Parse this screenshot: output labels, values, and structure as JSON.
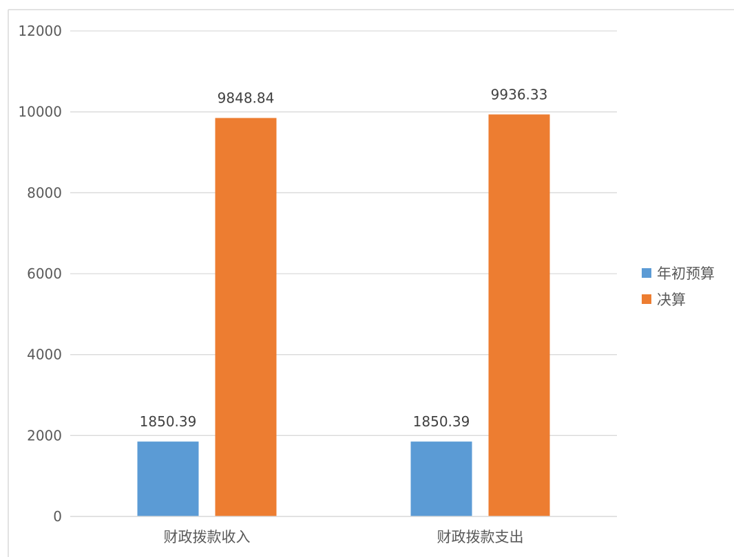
{
  "chart_data": {
    "type": "bar",
    "title": "",
    "xlabel": "",
    "ylabel": "",
    "categories": [
      "财政拨款收入",
      "财政拨款支出"
    ],
    "series": [
      {
        "name": "年初预算",
        "values": [
          1850.39,
          1850.39
        ],
        "data_labels": [
          "1850.39",
          "1850.39"
        ],
        "color": "#5b9bd5"
      },
      {
        "name": "决算",
        "values": [
          9848.84,
          9936.33
        ],
        "data_labels": [
          "9848.84",
          "9936.33"
        ],
        "color": "#ed7d31"
      }
    ],
    "ylim": [
      0,
      12000
    ],
    "yticks": [
      0,
      2000,
      4000,
      6000,
      8000,
      10000,
      12000
    ],
    "ytick_labels": [
      "0",
      "2000",
      "4000",
      "6000",
      "8000",
      "10000",
      "12000"
    ],
    "grid": true,
    "legend": {
      "position": "right"
    }
  }
}
